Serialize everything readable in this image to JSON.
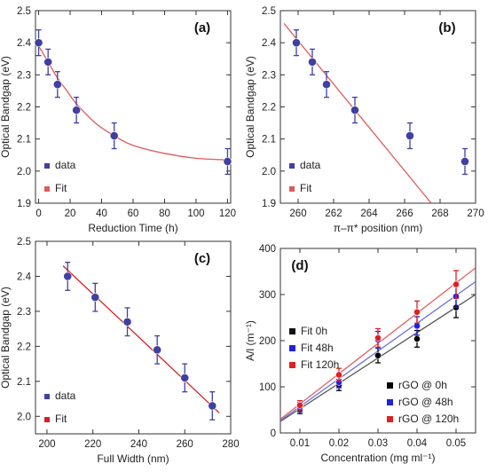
{
  "chart_data": [
    {
      "panel": "(a)",
      "type": "scatter",
      "xlabel": "Reduction Time (h)",
      "ylabel": "Optical Bandgap (eV)",
      "xlim": [
        -2,
        122
      ],
      "ylim": [
        1.9,
        2.5
      ],
      "xticks": [
        0,
        20,
        40,
        60,
        80,
        100,
        120
      ],
      "yticks": [
        1.9,
        2.0,
        2.1,
        2.2,
        2.3,
        2.4,
        2.5
      ],
      "series": [
        {
          "name": "data",
          "color": "#4040a0",
          "x": [
            0,
            6,
            12,
            24,
            48,
            120
          ],
          "y": [
            2.4,
            2.34,
            2.27,
            2.19,
            2.11,
            2.03
          ],
          "yerr": [
            0.04,
            0.04,
            0.04,
            0.04,
            0.04,
            0.04
          ]
        },
        {
          "name": "Fit",
          "type": "line",
          "color": "#e05a5a",
          "x": [
            0,
            6,
            12,
            18,
            24,
            36,
            48,
            60,
            80,
            100,
            120
          ],
          "y": [
            2.39,
            2.34,
            2.29,
            2.25,
            2.21,
            2.15,
            2.11,
            2.08,
            2.055,
            2.04,
            2.035
          ]
        }
      ],
      "legend": "bottom-left"
    },
    {
      "panel": "(b)",
      "type": "scatter",
      "xlabel": "π–π* position (nm)",
      "ylabel": "Optical Bandgap (eV)",
      "xlim": [
        259,
        270
      ],
      "ylim": [
        1.9,
        2.5
      ],
      "xticks": [
        260,
        262,
        264,
        266,
        268,
        270
      ],
      "yticks": [
        1.9,
        2.0,
        2.1,
        2.2,
        2.3,
        2.4,
        2.5
      ],
      "series": [
        {
          "name": "data",
          "color": "#4040a0",
          "x": [
            259.9,
            260.8,
            261.6,
            263.2,
            266.3,
            269.4
          ],
          "y": [
            2.4,
            2.34,
            2.27,
            2.19,
            2.11,
            2.03
          ],
          "yerr": [
            0.04,
            0.04,
            0.04,
            0.04,
            0.04,
            0.04
          ]
        },
        {
          "name": "Fit",
          "type": "line",
          "color": "#e05a5a",
          "x": [
            259.2,
            267.5
          ],
          "y": [
            2.46,
            1.9
          ]
        }
      ],
      "legend": "bottom-left"
    },
    {
      "panel": "(c)",
      "type": "scatter",
      "xlabel": "Full Width (nm)",
      "ylabel": "Optical Bandgap (eV)",
      "xlim": [
        195,
        280
      ],
      "ylim": [
        1.95,
        2.5
      ],
      "xticks": [
        200,
        220,
        240,
        260,
        280
      ],
      "yticks": [
        2.0,
        2.1,
        2.2,
        2.3,
        2.4,
        2.5
      ],
      "series": [
        {
          "name": "data",
          "color": "#4040a0",
          "x": [
            209,
            221,
            235,
            248,
            260,
            272
          ],
          "y": [
            2.4,
            2.34,
            2.27,
            2.19,
            2.11,
            2.03
          ],
          "yerr": [
            0.04,
            0.04,
            0.04,
            0.04,
            0.04,
            0.04
          ]
        },
        {
          "name": "Fit",
          "type": "line",
          "color": "#d42020",
          "x": [
            207,
            275
          ],
          "y": [
            2.43,
            2.01
          ]
        }
      ],
      "legend": "bottom-left"
    },
    {
      "panel": "(d)",
      "type": "scatter",
      "xlabel": "Concentration (mg ml⁻¹)",
      "ylabel": "A/l (m⁻¹)",
      "xlim": [
        0.005,
        0.055
      ],
      "ylim": [
        0,
        400
      ],
      "xticks": [
        0.01,
        0.02,
        0.03,
        0.04,
        0.05
      ],
      "xtick_labels": [
        "0.01",
        "0.02",
        "0.03",
        "0.04",
        "0.05"
      ],
      "yticks": [
        0,
        100,
        200,
        300,
        400
      ],
      "series": [
        {
          "name": "rGO @ 0h",
          "color": "#000000",
          "x": [
            0.01,
            0.02,
            0.03,
            0.04,
            0.05
          ],
          "y": [
            52,
            104,
            168,
            204,
            272
          ],
          "yerr": [
            10,
            12,
            16,
            18,
            22
          ]
        },
        {
          "name": "rGO @ 48h",
          "color": "#2020e0",
          "x": [
            0.01,
            0.02,
            0.03,
            0.04,
            0.05
          ],
          "y": [
            56,
            110,
            202,
            232,
            296
          ],
          "yerr": [
            10,
            12,
            18,
            20,
            24
          ]
        },
        {
          "name": "rGO @ 120h",
          "color": "#e02020",
          "x": [
            0.01,
            0.02,
            0.03,
            0.04,
            0.05
          ],
          "y": [
            60,
            126,
            206,
            262,
            322
          ],
          "yerr": [
            10,
            14,
            20,
            24,
            30
          ]
        },
        {
          "name": "Fit 0h",
          "type": "line",
          "color": "#555555",
          "x": [
            0.005,
            0.055
          ],
          "y": [
            25,
            300
          ]
        },
        {
          "name": "Fit 48h",
          "type": "line",
          "color": "#7070e0",
          "x": [
            0.005,
            0.055
          ],
          "y": [
            27,
            328
          ]
        },
        {
          "name": "Fit 120h",
          "type": "line",
          "color": "#e06060",
          "x": [
            0.005,
            0.055
          ],
          "y": [
            30,
            358
          ]
        }
      ],
      "legend_fit": "top-left",
      "legend_data": "bottom-right"
    }
  ]
}
